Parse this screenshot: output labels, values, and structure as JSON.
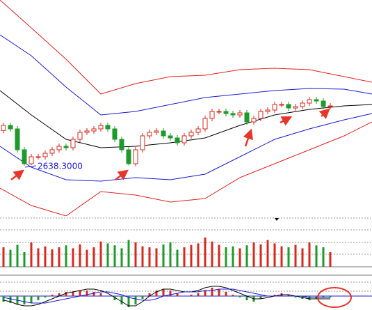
{
  "chart_data": [
    {
      "type": "candlestick",
      "up_color": "#d42a1e",
      "down_color": "#1e9a2a",
      "ylim": [
        2422,
        3352
      ],
      "open": [
        2790,
        2812,
        2797,
        2707,
        2647,
        2677,
        2677,
        2692,
        2707,
        2722,
        2716,
        2752,
        2782,
        2788,
        2797,
        2812,
        2797,
        2752,
        2707,
        2647,
        2707,
        2767,
        2782,
        2788,
        2767,
        2758,
        2737,
        2767,
        2782,
        2797,
        2842,
        2872,
        2872,
        2863,
        2857,
        2866,
        2827,
        2842,
        2872,
        2878,
        2902,
        2902,
        2887,
        2893,
        2908,
        2923,
        2917,
        2893
      ],
      "high": [
        2824,
        2824,
        2809,
        2719,
        2689,
        2689,
        2704,
        2719,
        2734,
        2734,
        2764,
        2794,
        2800,
        2809,
        2824,
        2824,
        2809,
        2764,
        2719,
        2719,
        2779,
        2794,
        2800,
        2800,
        2779,
        2770,
        2779,
        2794,
        2809,
        2854,
        2884,
        2884,
        2884,
        2875,
        2878,
        2878,
        2854,
        2884,
        2890,
        2914,
        2914,
        2914,
        2905,
        2920,
        2935,
        2935,
        2929,
        2908
      ],
      "low": [
        2778,
        2785,
        2695,
        2638.3,
        2641,
        2665,
        2665,
        2680,
        2695,
        2704,
        2704,
        2740,
        2770,
        2776,
        2785,
        2785,
        2740,
        2695,
        2640,
        2635,
        2695,
        2755,
        2770,
        2755,
        2746,
        2725,
        2725,
        2755,
        2770,
        2785,
        2830,
        2860,
        2851,
        2845,
        2845,
        2815,
        2815,
        2830,
        2860,
        2866,
        2890,
        2875,
        2875,
        2881,
        2896,
        2905,
        2881,
        2881
      ],
      "close": [
        2812,
        2797,
        2707,
        2647,
        2677,
        2677,
        2692,
        2707,
        2722,
        2716,
        2752,
        2782,
        2788,
        2797,
        2812,
        2797,
        2752,
        2707,
        2647,
        2707,
        2767,
        2782,
        2788,
        2767,
        2758,
        2737,
        2767,
        2782,
        2797,
        2842,
        2872,
        2872,
        2863,
        2857,
        2866,
        2827,
        2842,
        2872,
        2878,
        2902,
        2902,
        2887,
        2893,
        2908,
        2923,
        2917,
        2893,
        2896
      ],
      "band_x": [
        -0.5,
        4,
        9,
        14,
        19,
        24,
        29,
        34,
        39,
        44,
        49,
        53
      ],
      "bands": [
        {
          "color": "#e02020",
          "values": [
            3352,
            3232,
            3097,
            2947,
            2992,
            3022,
            3028,
            3052,
            3058,
            3052,
            3022,
            2998
          ]
        },
        {
          "color": "#1a1ad0",
          "values": [
            3202,
            3112,
            2977,
            2857,
            2872,
            2902,
            2932,
            2947,
            2962,
            2971,
            2968,
            2947
          ]
        },
        {
          "color": "#000000",
          "values": [
            2962,
            2857,
            2752,
            2716,
            2722,
            2737,
            2758,
            2812,
            2857,
            2881,
            2896,
            2902
          ]
        },
        {
          "color": "#1a1ad0",
          "values": [
            2722,
            2632,
            2578,
            2572,
            2587,
            2578,
            2602,
            2677,
            2752,
            2797,
            2836,
            2863
          ]
        },
        {
          "color": "#e02020",
          "values": [
            2542,
            2467,
            2422,
            2527,
            2512,
            2482,
            2497,
            2587,
            2647,
            2707,
            2767,
            2827
          ]
        }
      ],
      "annotation": "2638.3000"
    },
    {
      "type": "volume",
      "ylim": [
        0,
        100
      ],
      "values": [
        40,
        35,
        45,
        30,
        50,
        38,
        42,
        36,
        40,
        44,
        38,
        46,
        35,
        40,
        52,
        48,
        44,
        38,
        55,
        50,
        42,
        40,
        38,
        46,
        50,
        35,
        40,
        45,
        48,
        60,
        52,
        45,
        40,
        42,
        38,
        44,
        50,
        46,
        55,
        48,
        42,
        40,
        45,
        38,
        50,
        44,
        40,
        30
      ]
    },
    {
      "type": "macd",
      "ylim": [
        -10,
        10
      ],
      "hist": [
        -4,
        -5,
        -6,
        -6,
        -5,
        -3,
        -1,
        1,
        2,
        3,
        3,
        4,
        4,
        3,
        2,
        0,
        -3,
        -6,
        -8,
        -6,
        -2,
        2,
        4,
        5,
        4,
        2,
        0,
        1,
        2,
        4,
        6,
        5,
        3,
        1,
        -1,
        -3,
        -4,
        -2,
        0,
        1,
        2,
        1,
        -1,
        -2,
        -3,
        -2,
        -1,
        -1
      ],
      "series": [
        {
          "color": "#000000",
          "values": [
            -3,
            -4,
            -6,
            -7,
            -7,
            -6,
            -4,
            -2,
            0,
            2,
            3,
            4,
            5,
            5,
            4,
            2,
            -1,
            -4,
            -7,
            -7,
            -4,
            0,
            3,
            5,
            5,
            4,
            3,
            3,
            4,
            6,
            7,
            7,
            6,
            4,
            2,
            0,
            -2,
            -2,
            -1,
            0,
            1,
            1,
            0,
            -1,
            -2,
            -2,
            -2,
            -2
          ]
        },
        {
          "color": "#1a1ad0",
          "values": [
            -1,
            -2,
            -3,
            -4,
            -5,
            -5,
            -5,
            -4,
            -3,
            -2,
            -1,
            0,
            1,
            2,
            3,
            3,
            2,
            1,
            -1,
            -2,
            -3,
            -3,
            -2,
            0,
            1,
            2,
            3,
            3,
            3,
            4,
            4,
            5,
            5,
            5,
            4,
            3,
            2,
            1,
            0,
            0,
            0,
            0,
            0,
            0,
            -1,
            -1,
            -1,
            -1
          ]
        }
      ]
    }
  ]
}
